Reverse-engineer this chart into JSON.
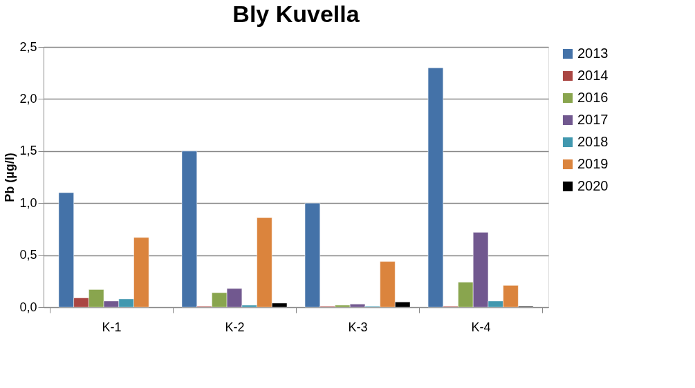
{
  "chart_data": {
    "type": "bar",
    "title": "Bly Kuvella",
    "ylabel": "Pb (µg/l)",
    "categories": [
      "K-1",
      "K-2",
      "K-3",
      "K-4"
    ],
    "series": [
      {
        "name": "2013",
        "color": "#4472a8",
        "values": [
          1.1,
          1.5,
          1.0,
          2.3
        ]
      },
      {
        "name": "2014",
        "color": "#aa4643",
        "values": [
          0.09,
          0.01,
          0.01,
          0.01
        ]
      },
      {
        "name": "2016",
        "color": "#89a54e",
        "values": [
          0.17,
          0.14,
          0.02,
          0.24
        ]
      },
      {
        "name": "2017",
        "color": "#71588f",
        "values": [
          0.06,
          0.18,
          0.03,
          0.72
        ]
      },
      {
        "name": "2018",
        "color": "#4198af",
        "values": [
          0.08,
          0.02,
          0.01,
          0.06
        ]
      },
      {
        "name": "2019",
        "color": "#db843d",
        "values": [
          0.67,
          0.86,
          0.44,
          0.21
        ]
      },
      {
        "name": "2020",
        "color": "#000000",
        "values": [
          null,
          0.04,
          0.05,
          0.01
        ]
      }
    ],
    "ylim": [
      0,
      2.5
    ],
    "yticks": [
      {
        "value": 0,
        "label": "0,0"
      },
      {
        "value": 0.5,
        "label": "0,5"
      },
      {
        "value": 1,
        "label": "1,0"
      },
      {
        "value": 1.5,
        "label": "1,5"
      },
      {
        "value": 2,
        "label": "2,0"
      },
      {
        "value": 2.5,
        "label": "2,5"
      }
    ],
    "grid": "y",
    "legend": "right"
  }
}
